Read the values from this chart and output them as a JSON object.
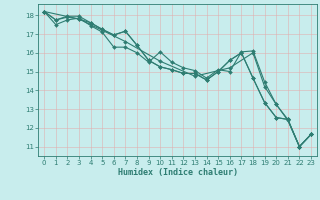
{
  "title": "",
  "xlabel": "Humidex (Indice chaleur)",
  "background_color": "#c8eded",
  "line_color": "#2e7d72",
  "grid_color": "#aed4d4",
  "xlim": [
    -0.5,
    23.5
  ],
  "ylim": [
    10.5,
    18.6
  ],
  "yticks": [
    11,
    12,
    13,
    14,
    15,
    16,
    17,
    18
  ],
  "xticks": [
    0,
    1,
    2,
    3,
    4,
    5,
    6,
    7,
    8,
    9,
    10,
    11,
    12,
    13,
    14,
    15,
    16,
    17,
    18,
    19,
    20,
    21,
    22,
    23
  ],
  "lines": [
    [
      0,
      18.2,
      1,
      17.5,
      2,
      17.75,
      3,
      17.85,
      4,
      17.45,
      5,
      17.1,
      6,
      16.3,
      7,
      16.3,
      8,
      16.0,
      9,
      15.5,
      10,
      16.05,
      11,
      15.5,
      12,
      15.2,
      13,
      15.05,
      14,
      14.65,
      15,
      15.1,
      16,
      15.0,
      17,
      16.05,
      18,
      16.1,
      19,
      14.45,
      20,
      13.25,
      21,
      12.45,
      22,
      11.0,
      23,
      11.65
    ],
    [
      0,
      18.2,
      1,
      17.75,
      2,
      17.95,
      3,
      17.95,
      4,
      17.6,
      5,
      17.25,
      6,
      16.95,
      7,
      17.15,
      8,
      16.4,
      9,
      15.6,
      10,
      15.25,
      11,
      15.1,
      12,
      14.9,
      13,
      14.9,
      14,
      14.55,
      15,
      15.0,
      16,
      15.6,
      17,
      16.0,
      18,
      14.65,
      19,
      13.35,
      20,
      12.55,
      21,
      12.45,
      22,
      11.0,
      23,
      11.65
    ],
    [
      0,
      18.2,
      1,
      17.75,
      2,
      17.9,
      3,
      17.8,
      4,
      17.6,
      5,
      17.25,
      6,
      16.95,
      7,
      17.15,
      8,
      16.4,
      9,
      15.6,
      10,
      15.25,
      11,
      15.1,
      12,
      14.9,
      13,
      14.9,
      14,
      14.55,
      15,
      15.0,
      16,
      15.6,
      17,
      16.0,
      18,
      14.65,
      19,
      13.35,
      20,
      12.55,
      21,
      12.45,
      22,
      11.0,
      23,
      11.65
    ],
    [
      0,
      18.2,
      3,
      17.8,
      7,
      16.6,
      10,
      15.55,
      13,
      14.75,
      16,
      15.2,
      18,
      16.0,
      19,
      14.2,
      20,
      13.25,
      21,
      12.4,
      22,
      11.0,
      23,
      11.65
    ]
  ]
}
